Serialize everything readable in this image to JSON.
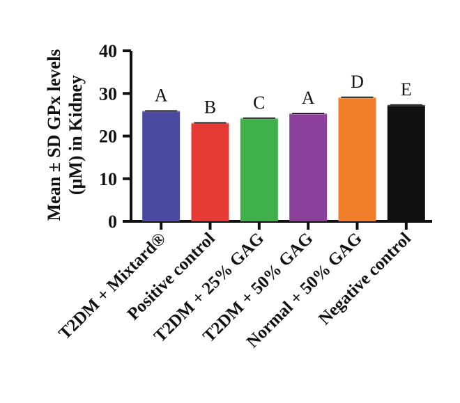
{
  "chart_data": {
    "type": "bar",
    "title": "",
    "ylabel_lines": [
      "Mean ± SD GPx levels",
      "(μM) in Kidney"
    ],
    "ylim": [
      0,
      40
    ],
    "yticks": [
      0,
      10,
      20,
      30,
      40
    ],
    "yticks_labels": [
      "0",
      "10",
      "20",
      "30",
      "40"
    ],
    "categories": [
      "T2DM + Mixtard®",
      "Positive control",
      "T2DM + 25% GAG",
      "T2DM + 50% GAG",
      "Normal + 50% GAG",
      "Negative control"
    ],
    "values": [
      25.6,
      22.8,
      23.9,
      25.0,
      28.8,
      27.0
    ],
    "error": [
      0.3,
      0.3,
      0.3,
      0.3,
      0.3,
      0.3
    ],
    "group_letters": [
      "A",
      "B",
      "C",
      "A",
      "D",
      "E"
    ],
    "colors": [
      "#4a4aa0",
      "#e43a33",
      "#3fb04a",
      "#8a3f9a",
      "#f07e2b",
      "#111111"
    ],
    "grid": false,
    "legend": "none"
  }
}
